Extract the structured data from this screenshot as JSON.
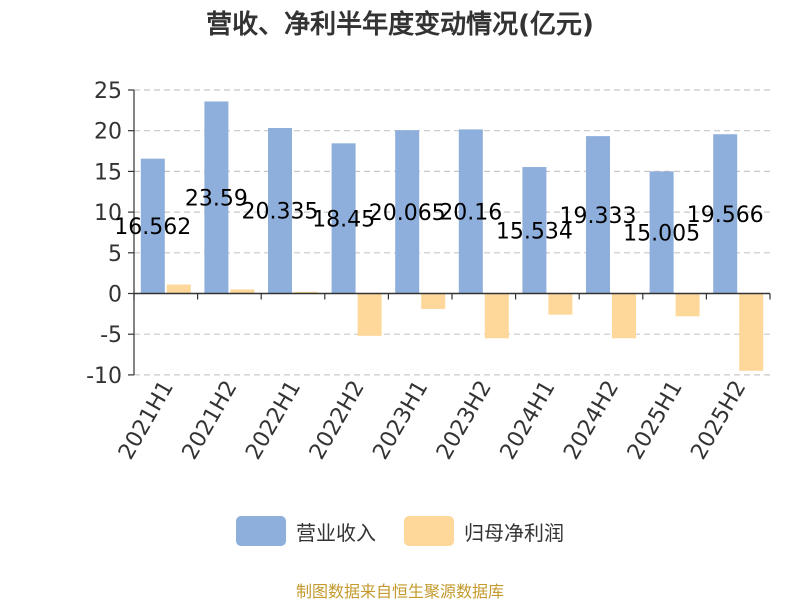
{
  "chart_data": {
    "type": "bar",
    "title": "营收、净利半年度变动情况(亿元)",
    "categories": [
      "2021H1",
      "2021H2",
      "2022H1",
      "2022H2",
      "2023H1",
      "2023H2",
      "2024H1",
      "2024H2",
      "2025H1",
      "2025H2"
    ],
    "series": [
      {
        "name": "营业收入",
        "color": "#8eaedc",
        "values": [
          16.562,
          23.59,
          20.335,
          18.45,
          20.065,
          20.16,
          15.534,
          19.333,
          15.005,
          19.566
        ],
        "labels": [
          "16.562",
          "23.59",
          "20.335",
          "18.45",
          "20.065",
          "20.16",
          "15.534",
          "19.333",
          "15.005",
          "19.566"
        ]
      },
      {
        "name": "归母净利润",
        "color": "#fdd89a",
        "values": [
          1.1,
          0.5,
          0.2,
          -5.2,
          -1.9,
          -5.5,
          -2.6,
          -5.5,
          -2.8,
          -9.5
        ]
      }
    ],
    "yticks": [
      "25",
      "20",
      "15",
      "10",
      "5",
      "0",
      "-5",
      "-10"
    ],
    "ylim": [
      -10,
      25
    ],
    "grid": true,
    "legend": "bottom"
  },
  "source": "制图数据来自恒生聚源数据库"
}
